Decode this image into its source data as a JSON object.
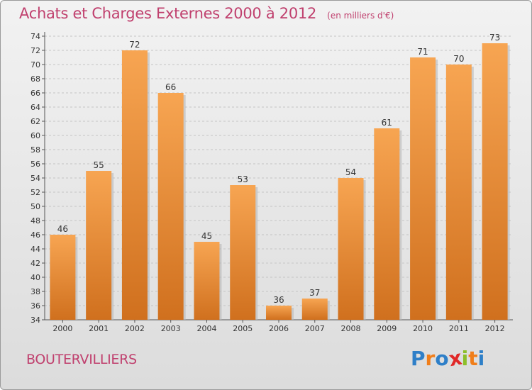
{
  "header": {
    "title": "Achats et Charges Externes 2000 à 2012",
    "unit": "(en milliers d'€)"
  },
  "footer": {
    "commune": "BOUTERVILLIERS",
    "logo_letters": [
      "P",
      "r",
      "o",
      "x",
      "i",
      "t",
      "i"
    ],
    "logo_colors": [
      "#2e7fc8",
      "#f07e1a",
      "#2e7fc8",
      "#e02828",
      "#8cbf2a",
      "#f07e1a",
      "#2e7fc8"
    ]
  },
  "colors": {
    "bar_light": "#f7a552",
    "bar_dark": "#d0701e",
    "text": "#c0406e"
  },
  "chart_data": {
    "type": "bar",
    "categories": [
      "2000",
      "2001",
      "2002",
      "2003",
      "2004",
      "2005",
      "2006",
      "2007",
      "2008",
      "2009",
      "2010",
      "2011",
      "2012"
    ],
    "values": [
      46,
      55,
      72,
      66,
      45,
      53,
      36,
      37,
      54,
      61,
      71,
      70,
      73
    ],
    "ylim": [
      34,
      74
    ],
    "yticks": [
      34,
      36,
      38,
      40,
      42,
      44,
      46,
      48,
      50,
      52,
      54,
      56,
      58,
      60,
      62,
      64,
      66,
      68,
      70,
      72,
      74
    ],
    "grid": true
  }
}
